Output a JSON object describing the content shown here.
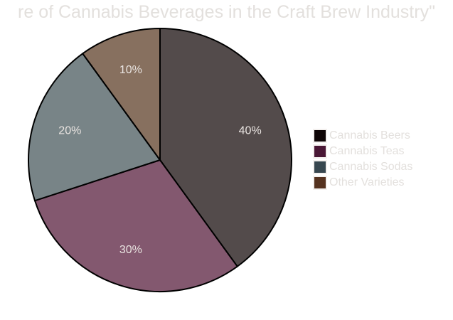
{
  "chart_data": {
    "type": "pie",
    "title": "re of Cannabis Beverages in the Craft Brew Industry\"",
    "categories": [
      "Cannabis Beers",
      "Cannabis Teas",
      "Cannabis Sodas",
      "Other Varieties"
    ],
    "values": [
      40,
      30,
      20,
      10
    ],
    "data_labels": [
      "40%",
      "30%",
      "20%",
      "10%"
    ],
    "slice_colors": [
      "#534b4b",
      "#83586f",
      "#788487",
      "#87705f"
    ],
    "legend_colors": [
      "#0f0607",
      "#4a1836",
      "#37474f",
      "#55321f"
    ],
    "legend": {
      "position": "right",
      "entries": [
        "Cannabis Beers",
        "Cannabis Teas",
        "Cannabis Sodas",
        "Other Varieties"
      ]
    },
    "start_angle": "top",
    "direction": "clockwise"
  }
}
